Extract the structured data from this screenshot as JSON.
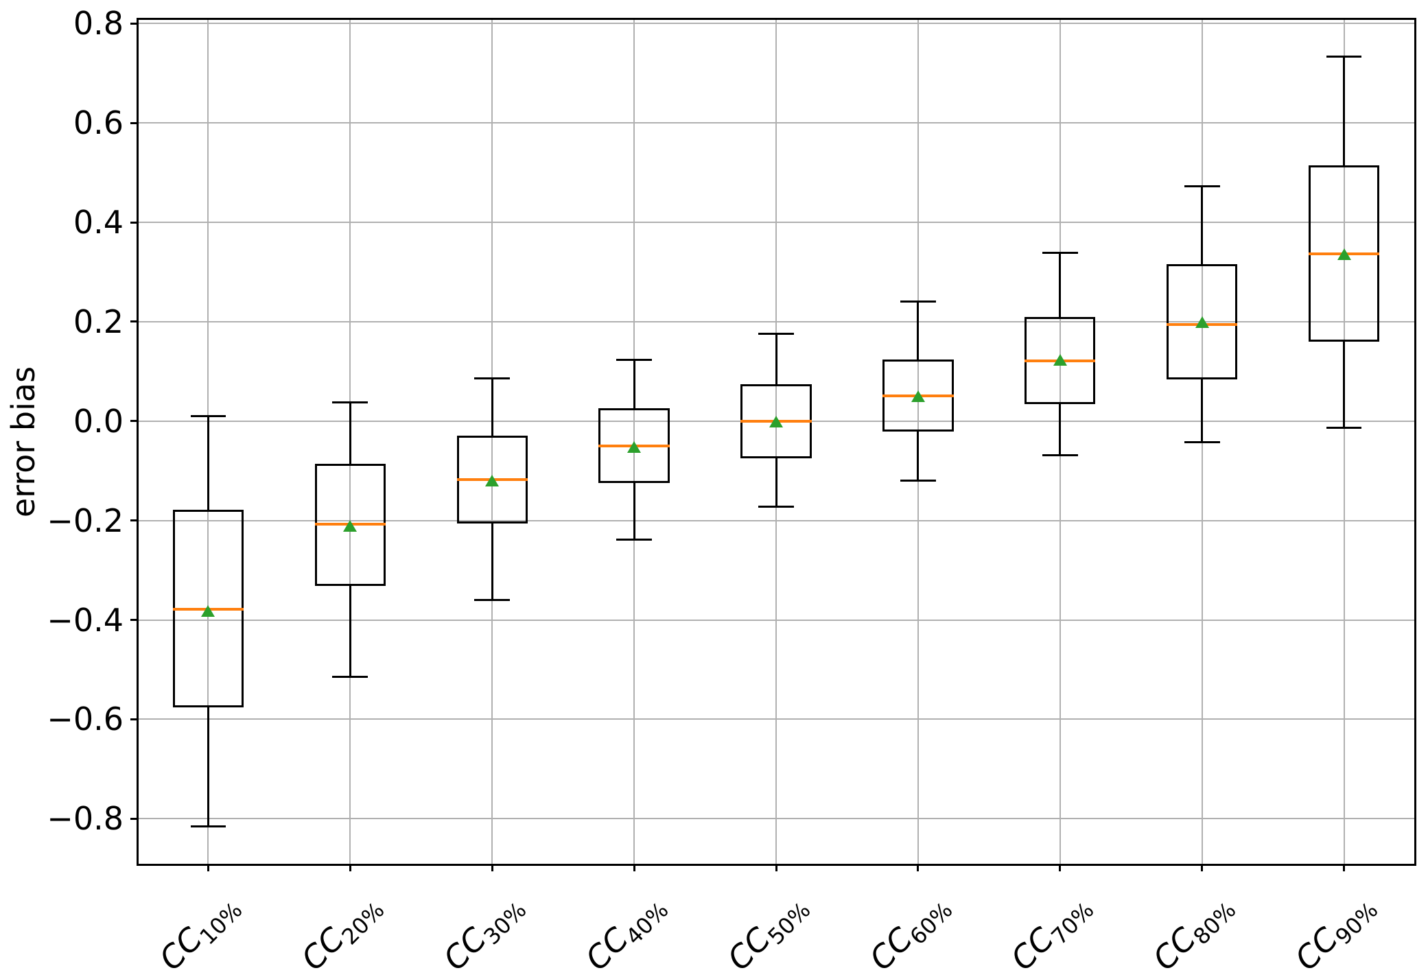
{
  "chart_data": {
    "type": "box",
    "title": "",
    "xlabel": "",
    "ylabel": "error bias",
    "grid": true,
    "legend_position": "none",
    "ylim": [
      -0.892,
      0.81
    ],
    "xlim": [
      0.5,
      9.5
    ],
    "yticks": [
      {
        "value": 0.8,
        "label": "0.8"
      },
      {
        "value": 0.6,
        "label": "0.6"
      },
      {
        "value": 0.4,
        "label": "0.4"
      },
      {
        "value": 0.2,
        "label": "0.2"
      },
      {
        "value": 0.0,
        "label": "0.0"
      },
      {
        "value": -0.2,
        "label": "−0.2"
      },
      {
        "value": -0.4,
        "label": "−0.4"
      },
      {
        "value": -0.6,
        "label": "−0.6"
      },
      {
        "value": -0.8,
        "label": "−0.8"
      }
    ],
    "categories": [
      {
        "base": "CC",
        "sub": "10%",
        "label": "CC 10%"
      },
      {
        "base": "CC",
        "sub": "20%",
        "label": "CC 20%"
      },
      {
        "base": "CC",
        "sub": "30%",
        "label": "CC 30%"
      },
      {
        "base": "CC",
        "sub": "40%",
        "label": "CC 40%"
      },
      {
        "base": "CC",
        "sub": "50%",
        "label": "CC 50%"
      },
      {
        "base": "CC",
        "sub": "60%",
        "label": "CC 60%"
      },
      {
        "base": "CC",
        "sub": "70%",
        "label": "CC 70%"
      },
      {
        "base": "CC",
        "sub": "80%",
        "label": "CC 80%"
      },
      {
        "base": "CC",
        "sub": "90%",
        "label": "CC 90%"
      }
    ],
    "boxes": [
      {
        "whislo": -0.815,
        "q1": -0.576,
        "med": -0.378,
        "mean": -0.383,
        "q3": -0.178,
        "whishi": 0.01
      },
      {
        "whislo": -0.515,
        "q1": -0.332,
        "med": -0.208,
        "mean": -0.212,
        "q3": -0.086,
        "whishi": 0.038
      },
      {
        "whislo": -0.36,
        "q1": -0.206,
        "med": -0.118,
        "mean": -0.121,
        "q3": -0.029,
        "whishi": 0.086
      },
      {
        "whislo": -0.238,
        "q1": -0.125,
        "med": -0.05,
        "mean": -0.053,
        "q3": 0.026,
        "whishi": 0.123
      },
      {
        "whislo": -0.172,
        "q1": -0.075,
        "med": 0.0,
        "mean": -0.002,
        "q3": 0.074,
        "whishi": 0.176
      },
      {
        "whislo": -0.12,
        "q1": -0.021,
        "med": 0.051,
        "mean": 0.049,
        "q3": 0.124,
        "whishi": 0.24
      },
      {
        "whislo": -0.069,
        "q1": 0.034,
        "med": 0.121,
        "mean": 0.123,
        "q3": 0.209,
        "whishi": 0.338
      },
      {
        "whislo": -0.042,
        "q1": 0.084,
        "med": 0.195,
        "mean": 0.198,
        "q3": 0.316,
        "whishi": 0.472
      },
      {
        "whislo": -0.013,
        "q1": 0.16,
        "med": 0.336,
        "mean": 0.335,
        "q3": 0.515,
        "whishi": 0.733
      }
    ],
    "colors": {
      "median": "#ff7f0e",
      "mean": "#2ca02c",
      "box_line": "#000000",
      "grid": "#b0b0b0",
      "spine": "#000000",
      "background": "#ffffff"
    }
  }
}
